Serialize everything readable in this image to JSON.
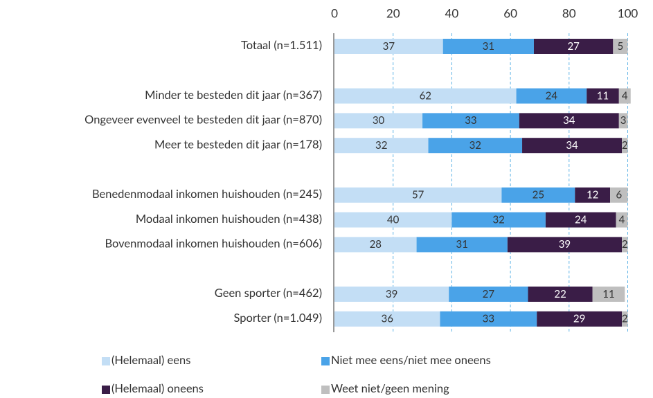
{
  "chart_data": {
    "type": "stacked-bar-horizontal",
    "categories": [
      "Totaal (n=1.511)",
      null,
      "Minder te besteden dit jaar (n=367)",
      "Ongeveer evenveel te besteden dit jaar (n=870)",
      "Meer te besteden dit jaar (n=178)",
      null,
      "Benedenmodaal inkomen huishouden (n=245)",
      "Modaal inkomen huishouden (n=438)",
      "Bovenmodaal inkomen huishouden (n=606)",
      null,
      "Geen sporter (n=462)",
      "Sporter (n=1.049)"
    ],
    "series": [
      {
        "name": "(Helemaal) eens",
        "color": "#c3def5",
        "values": [
          37,
          null,
          62,
          30,
          32,
          null,
          57,
          40,
          28,
          null,
          39,
          36
        ]
      },
      {
        "name": "Niet mee eens/niet mee oneens",
        "color": "#4aa3e8",
        "values": [
          31,
          null,
          24,
          33,
          32,
          null,
          25,
          32,
          31,
          null,
          27,
          33
        ]
      },
      {
        "name": "(Helemaal) oneens",
        "color": "#3a1d47",
        "values": [
          27,
          null,
          11,
          34,
          34,
          null,
          12,
          24,
          39,
          null,
          22,
          29
        ]
      },
      {
        "name": "Weet niet/geen mening",
        "color": "#bfbfbf",
        "values": [
          5,
          null,
          4,
          3,
          2,
          null,
          6,
          4,
          2,
          null,
          11,
          2
        ]
      }
    ],
    "xlim": [
      0,
      100
    ],
    "xticks": [
      0,
      20,
      40,
      60,
      80,
      100
    ],
    "grid": true,
    "legend": "bottom"
  }
}
